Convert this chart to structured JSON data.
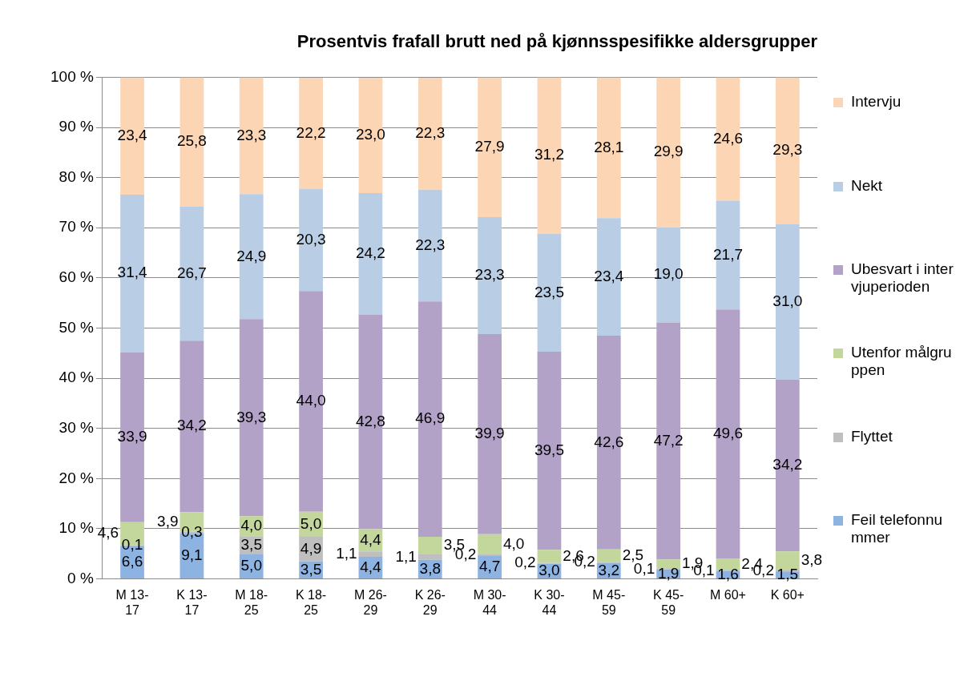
{
  "chart_data": {
    "type": "bar",
    "stacked": true,
    "title": "Prosentvis frafall brutt ned på kjønnsspesifikke aldersgrupper",
    "categories": [
      "M 13-17",
      "K 13-17",
      "M 18-25",
      "K 18-25",
      "M 26-29",
      "K 26-29",
      "M 30-44",
      "K 30-44",
      "M 45-59",
      "K 45-59",
      "M 60+",
      "K 60+"
    ],
    "series": [
      {
        "name": "Feil telefonnummer",
        "color": "#8db3e2",
        "values": [
          6.6,
          9.1,
          5.0,
          3.5,
          4.4,
          3.8,
          4.7,
          3.0,
          3.2,
          1.9,
          1.6,
          1.5
        ],
        "value_labels": [
          "6,6",
          "9,1",
          "5,0",
          "3,5",
          "4,4",
          "3,8",
          "4,7",
          "3,0",
          "3,2",
          "1,9",
          "1,6",
          "1,5"
        ]
      },
      {
        "name": "Flyttet",
        "color": "#bfbfbf",
        "values": [
          0.1,
          0.3,
          3.5,
          4.9,
          1.1,
          1.1,
          0.2,
          0.2,
          0.2,
          0.1,
          0.1,
          0.2
        ],
        "value_labels": [
          "0,1",
          "0,3",
          "3,5",
          "4,9",
          "1,1",
          "1,1",
          "0,2",
          "0,2",
          "0,2",
          "0,1",
          "0,1",
          "0,2"
        ]
      },
      {
        "name": "Utenfor målgruppen",
        "color": "#c3d69b",
        "values": [
          4.6,
          3.9,
          4.0,
          5.0,
          4.4,
          3.5,
          4.0,
          2.6,
          2.5,
          1.9,
          2.4,
          3.8
        ],
        "value_labels": [
          "4,6",
          "3,9",
          "4,0",
          "5,0",
          "4,4",
          "3,5",
          "4,0",
          "2,6",
          "2,5",
          "1,9",
          "2,4",
          "3,8"
        ]
      },
      {
        "name": "Ubesvart i intervjuperioden",
        "color": "#b2a2c7",
        "values": [
          33.9,
          34.2,
          39.3,
          44.0,
          42.8,
          46.9,
          39.9,
          39.5,
          42.6,
          47.2,
          49.6,
          34.2
        ],
        "value_labels": [
          "33,9",
          "34,2",
          "39,3",
          "44,0",
          "42,8",
          "46,9",
          "39,9",
          "39,5",
          "42,6",
          "47,2",
          "49,6",
          "34,2"
        ]
      },
      {
        "name": "Nekt",
        "color": "#b9cde5",
        "values": [
          31.4,
          26.7,
          24.9,
          20.3,
          24.2,
          22.3,
          23.3,
          23.5,
          23.4,
          19.0,
          21.7,
          31.0
        ],
        "value_labels": [
          "31,4",
          "26,7",
          "24,9",
          "20,3",
          "24,2",
          "22,3",
          "23,3",
          "23,5",
          "23,4",
          "19,0",
          "21,7",
          "31,0"
        ]
      },
      {
        "name": "Intervju",
        "color": "#fcd5b5",
        "values": [
          23.4,
          25.8,
          23.3,
          22.2,
          23.0,
          22.3,
          27.9,
          31.2,
          28.1,
          29.9,
          24.6,
          29.3
        ],
        "value_labels": [
          "23,4",
          "25,8",
          "23,3",
          "22,2",
          "23,0",
          "22,3",
          "27,9",
          "31,2",
          "28,1",
          "29,9",
          "24,6",
          "29,3"
        ]
      }
    ],
    "ylim": [
      0,
      100
    ],
    "yticks": [
      {
        "value": 0,
        "label": "0 %"
      },
      {
        "value": 10,
        "label": "10 %"
      },
      {
        "value": 20,
        "label": "20 %"
      },
      {
        "value": 30,
        "label": "30 %"
      },
      {
        "value": 40,
        "label": "40 %"
      },
      {
        "value": 50,
        "label": "50 %"
      },
      {
        "value": 60,
        "label": "60 %"
      },
      {
        "value": 70,
        "label": "70 %"
      },
      {
        "value": 80,
        "label": "80 %"
      },
      {
        "value": 90,
        "label": "90 %"
      },
      {
        "value": 100,
        "label": "100 %"
      }
    ],
    "grid": "y",
    "legend": "right"
  }
}
